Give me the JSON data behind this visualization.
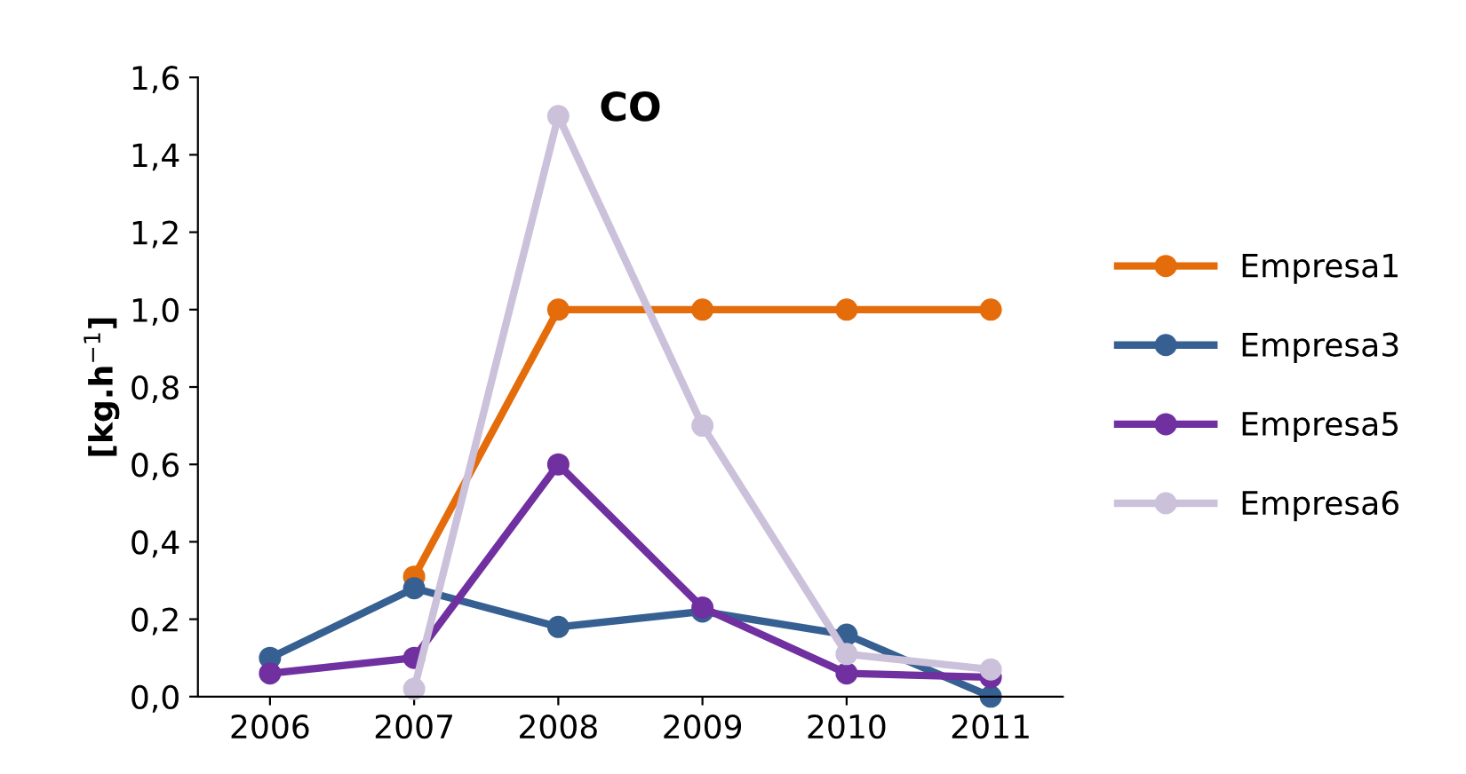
{
  "chart_data": {
    "type": "line",
    "title": "CO",
    "ylabel": "[kg.h$^{−1}$]",
    "categories": [
      "2006",
      "2007",
      "2008",
      "2009",
      "2010",
      "2011"
    ],
    "series": [
      {
        "name": "Empresa1",
        "color": "#e46c0a",
        "values": [
          null,
          0.31,
          1.0,
          1.0,
          1.0,
          1.0
        ]
      },
      {
        "name": "Empresa3",
        "color": "#376092",
        "values": [
          0.1,
          0.28,
          0.18,
          0.22,
          0.16,
          0.0
        ]
      },
      {
        "name": "Empresa5",
        "color": "#7030a0",
        "values": [
          0.06,
          0.1,
          0.6,
          0.23,
          0.06,
          0.05
        ]
      },
      {
        "name": "Empresa6",
        "color": "#ccc1da",
        "values": [
          null,
          0.02,
          1.5,
          0.7,
          0.11,
          0.07
        ]
      }
    ],
    "ylim": [
      0,
      1.6
    ],
    "yticks": [
      {
        "value": 0,
        "label": "0,0"
      },
      {
        "value": 0.2,
        "label": "0,2"
      },
      {
        "value": 0.4,
        "label": "0,4"
      },
      {
        "value": 0.6,
        "label": "0,6"
      },
      {
        "value": 0.8,
        "label": "0,8"
      },
      {
        "value": 1.0,
        "label": "1,0"
      },
      {
        "value": 1.2,
        "label": "1,2"
      },
      {
        "value": 1.4,
        "label": "1,4"
      },
      {
        "value": 1.6,
        "label": "1,6"
      }
    ],
    "grid": false,
    "legend": "right",
    "marker": "circle",
    "line_style": "solid"
  }
}
